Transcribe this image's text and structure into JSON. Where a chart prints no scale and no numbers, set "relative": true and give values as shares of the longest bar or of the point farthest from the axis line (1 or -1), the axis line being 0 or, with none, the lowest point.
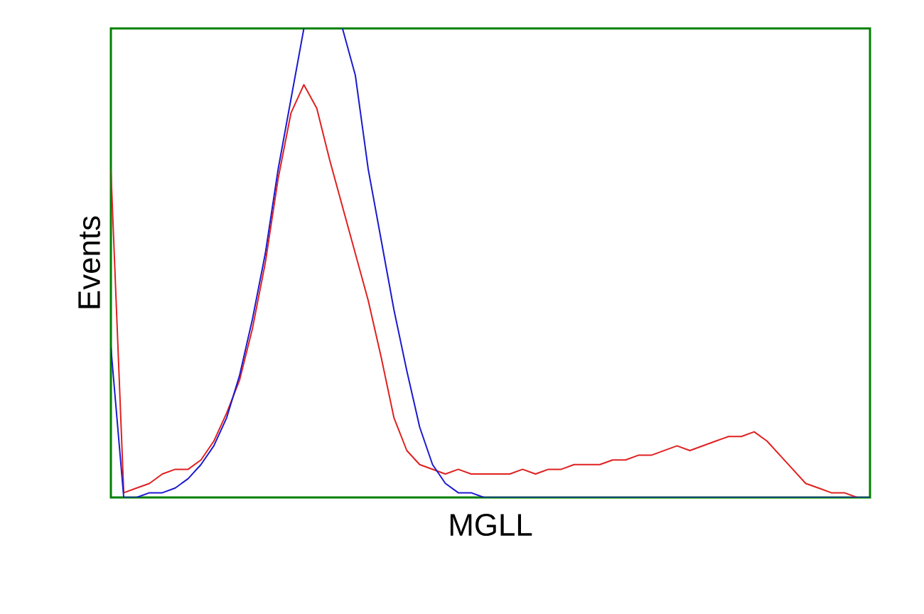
{
  "chart_data": {
    "type": "line",
    "relative": true,
    "xlabel": "MGLL",
    "ylabel": "Events",
    "categories": [
      null,
      null,
      null,
      null,
      null,
      null,
      null,
      null,
      null,
      null,
      null,
      null,
      null,
      null,
      null,
      null,
      null,
      null,
      null,
      null,
      null,
      null,
      null,
      null,
      null,
      null,
      null,
      null,
      null,
      null,
      null,
      null,
      null,
      null,
      null,
      null,
      null,
      null,
      null,
      null,
      null,
      null,
      null,
      null,
      null,
      null,
      null,
      null,
      null,
      null,
      null,
      null,
      null,
      null,
      null,
      null,
      null,
      null,
      null,
      null
    ],
    "series": [
      {
        "color": "#e02020",
        "values": [
          0.7,
          0.01,
          0.02,
          0.03,
          0.05,
          0.06,
          0.06,
          0.08,
          0.12,
          0.18,
          0.25,
          0.36,
          0.5,
          0.68,
          0.82,
          0.88,
          0.83,
          0.72,
          0.62,
          0.52,
          0.42,
          0.3,
          0.17,
          0.1,
          0.07,
          0.06,
          0.05,
          0.06,
          0.05,
          0.05,
          0.05,
          0.05,
          0.06,
          0.05,
          0.06,
          0.06,
          0.07,
          0.07,
          0.07,
          0.08,
          0.08,
          0.09,
          0.09,
          0.1,
          0.11,
          0.1,
          0.11,
          0.12,
          0.13,
          0.13,
          0.14,
          0.12,
          0.09,
          0.06,
          0.03,
          0.02,
          0.01,
          0.01,
          0,
          0
        ]
      },
      {
        "color": "#1a1ad0",
        "values": [
          0.32,
          0,
          0,
          0.01,
          0.01,
          0.02,
          0.04,
          0.07,
          0.11,
          0.17,
          0.26,
          0.38,
          0.52,
          0.7,
          0.85,
          1,
          null,
          null,
          1,
          0.9,
          0.7,
          0.55,
          0.4,
          0.27,
          0.15,
          0.07,
          0.03,
          0.01,
          0.01,
          0,
          0,
          0,
          0,
          0,
          0,
          0,
          0,
          0,
          0,
          0,
          0,
          0,
          0,
          0,
          0,
          0,
          0,
          0,
          0,
          0,
          0,
          0,
          0,
          0,
          0,
          0,
          0,
          0,
          0,
          0
        ]
      }
    ]
  }
}
